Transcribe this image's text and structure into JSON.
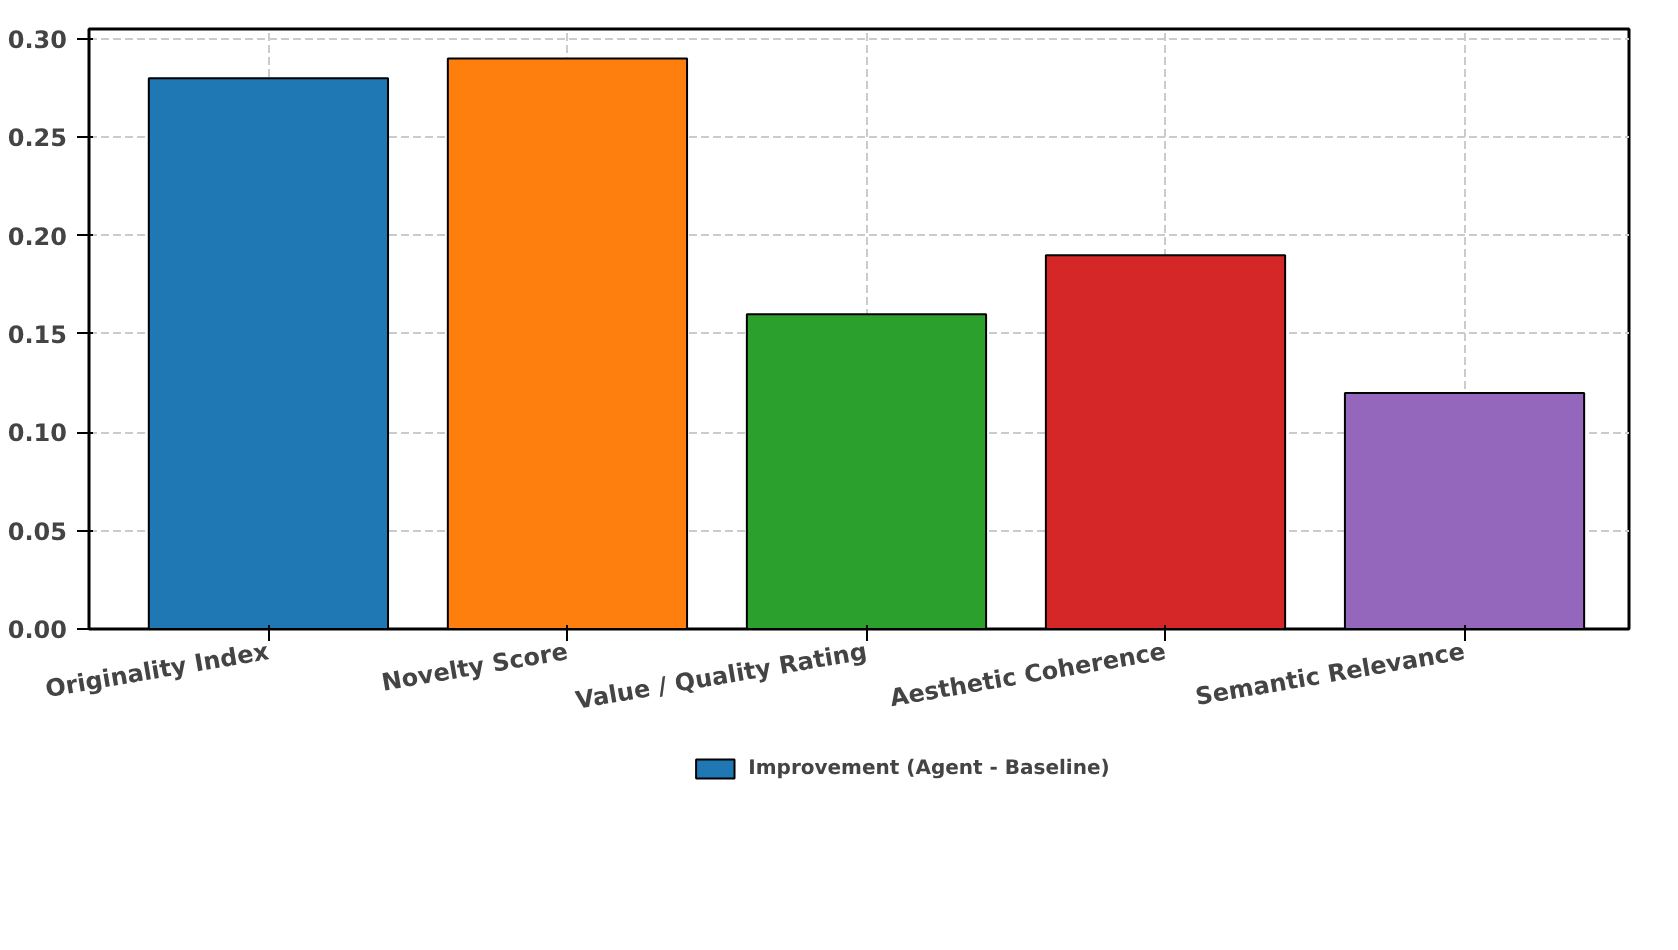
{
  "chart_data": {
    "type": "bar",
    "categories": [
      "Originality Index",
      "Novelty Score",
      "Value / Quality Rating",
      "Aesthetic Coherence",
      "Semantic Relevance"
    ],
    "series": [
      {
        "name": "Improvement (Agent - Baseline)",
        "color": "#1f77b4",
        "colors": [
          "#1f77b4",
          "#ff7f0e",
          "#2ca02c",
          "#d62728",
          "#9467bd"
        ],
        "values": [
          0.28,
          0.29,
          0.16,
          0.19,
          0.12
        ]
      }
    ],
    "ylim": [
      0,
      0.305
    ],
    "yticks": [
      {
        "value": 0,
        "label": "0.00"
      },
      {
        "value": 0.05,
        "label": "0.05"
      },
      {
        "value": 0.1,
        "label": "0.10"
      },
      {
        "value": 0.15,
        "label": "0.15"
      },
      {
        "value": 0.2,
        "label": "0.20"
      },
      {
        "value": 0.25,
        "label": "0.25"
      },
      {
        "value": 0.3,
        "label": "0.30"
      }
    ],
    "grid": true,
    "legend": "bottom"
  }
}
